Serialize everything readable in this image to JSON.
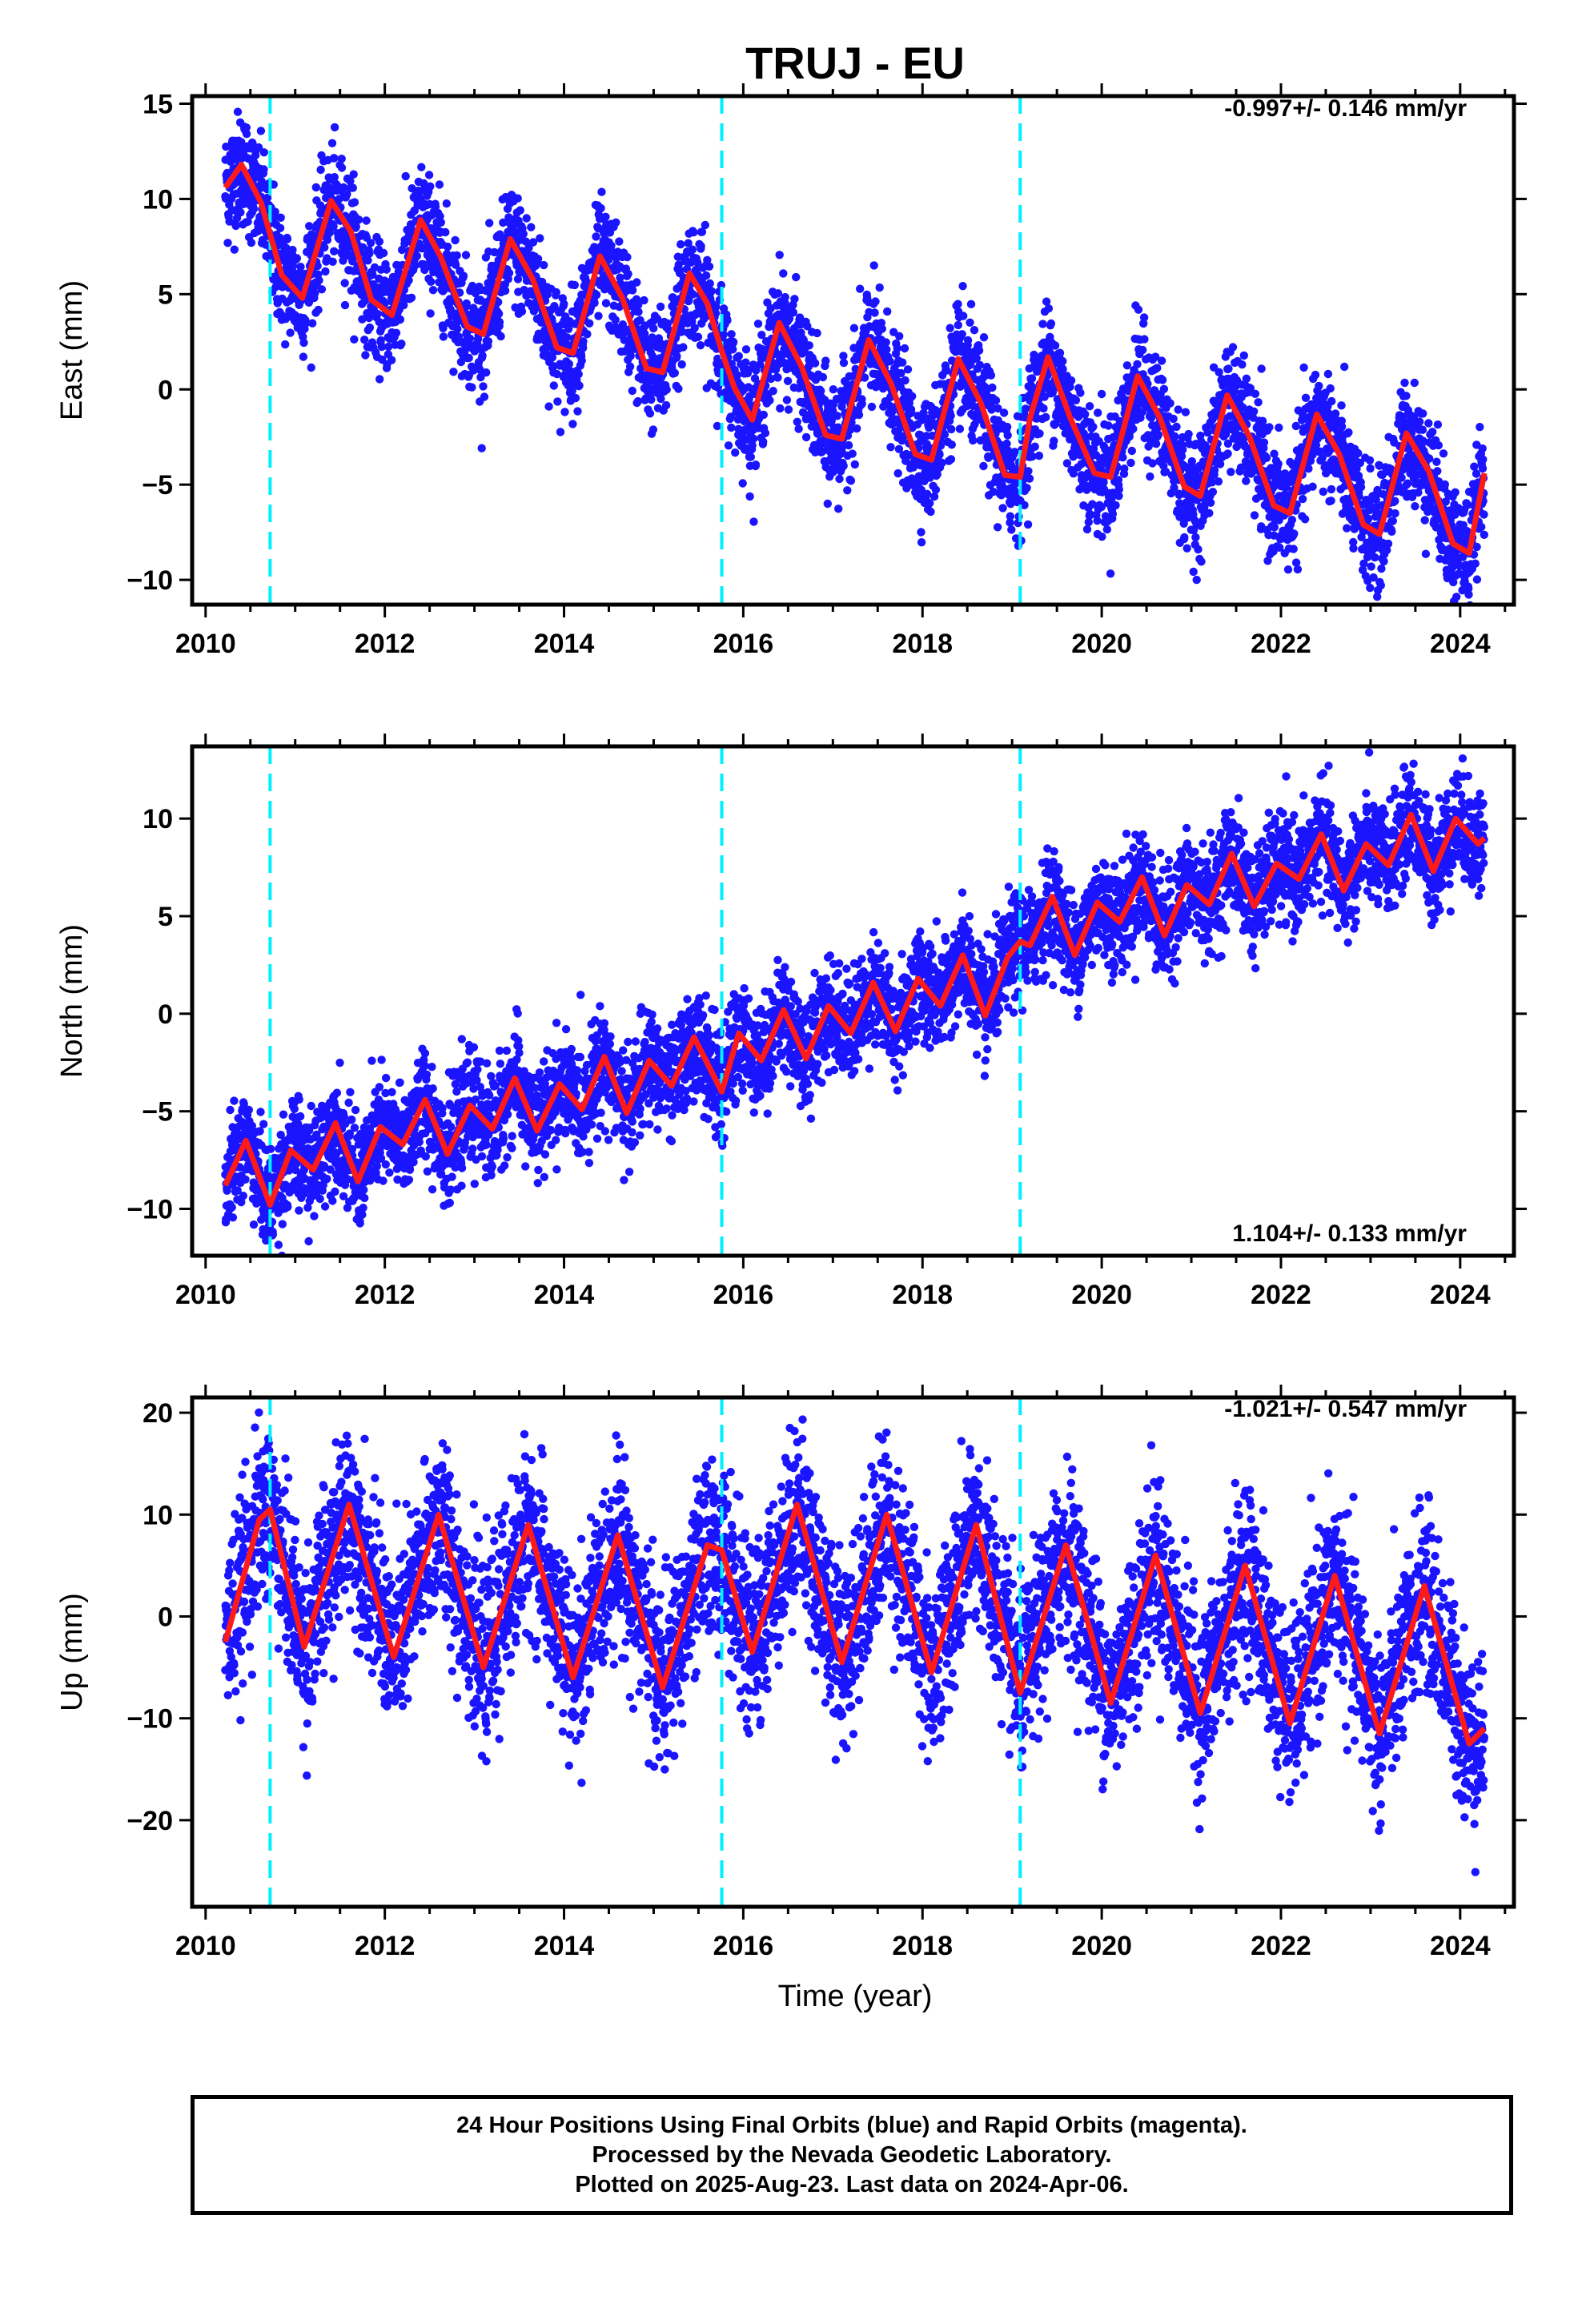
{
  "figure": {
    "title": "TRUJ - EU",
    "xlabel": "Time (year)",
    "footer": [
      "24 Hour Positions Using Final Orbits (blue) and Rapid Orbits (magenta).",
      "Processed by the Nevada Geodetic Laboratory.",
      "Plotted on 2025-Aug-23. Last data on 2024-Apr-06."
    ],
    "colors": {
      "points": "#1a14ff",
      "model": "#ff1a1a",
      "steps": "#00f0ff",
      "frame": "#000000"
    }
  },
  "chart_data": [
    {
      "type": "scatter",
      "ylabel": "East (mm)",
      "rate_text": "-0.997+/- 0.146 mm/yr",
      "xlim": [
        2009.85,
        2024.6
      ],
      "ylim": [
        -11.3,
        15.4
      ],
      "xticks": [
        "2010",
        "2012",
        "2014",
        "2016",
        "2018",
        "2020",
        "2022",
        "2024"
      ],
      "yticks": [
        "15",
        "10",
        "5",
        "0",
        "−5",
        "−10"
      ],
      "steps": [
        2010.72,
        2015.76,
        2019.09
      ],
      "series": [
        {
          "role": "model",
          "x": [
            2010.22,
            2010.4,
            2010.62,
            2010.85,
            2011.08,
            2011.4,
            2011.62,
            2011.85,
            2012.08,
            2012.4,
            2012.62,
            2012.92,
            2013.1,
            2013.4,
            2013.65,
            2013.92,
            2014.1,
            2014.4,
            2014.65,
            2014.92,
            2015.1,
            2015.4,
            2015.6,
            2015.76,
            2015.9,
            2016.1,
            2016.4,
            2016.65,
            2016.92,
            2017.1,
            2017.4,
            2017.65,
            2017.92,
            2018.1,
            2018.4,
            2018.65,
            2018.92,
            2019.09,
            2019.2,
            2019.4,
            2019.65,
            2019.92,
            2020.1,
            2020.4,
            2020.65,
            2020.92,
            2021.1,
            2021.4,
            2021.65,
            2021.92,
            2022.1,
            2022.4,
            2022.65,
            2022.92,
            2023.1,
            2023.4,
            2023.65,
            2023.92,
            2024.1,
            2024.27
          ],
          "y": [
            10.6,
            11.8,
            9.8,
            6.0,
            4.8,
            9.9,
            8.3,
            4.7,
            3.9,
            8.9,
            7.0,
            3.3,
            2.9,
            7.9,
            5.8,
            2.2,
            1.9,
            7.0,
            4.8,
            1.1,
            0.9,
            6.1,
            4.5,
            2.0,
            0.1,
            -1.6,
            3.5,
            1.2,
            -2.4,
            -2.6,
            2.6,
            0.3,
            -3.4,
            -3.7,
            1.6,
            -0.7,
            -4.5,
            -4.6,
            -1.5,
            1.7,
            -1.5,
            -4.4,
            -4.6,
            0.7,
            -1.5,
            -5.1,
            -5.6,
            -0.3,
            -2.5,
            -6.1,
            -6.5,
            -1.3,
            -3.4,
            -7.1,
            -7.6,
            -2.3,
            -4.3,
            -8.1,
            -8.6,
            -4.4
          ]
        }
      ]
    },
    {
      "type": "scatter",
      "ylabel": "North (mm)",
      "rate_text": "1.104+/- 0.133 mm/yr",
      "xlim": [
        2009.85,
        2024.6
      ],
      "ylim": [
        -12.4,
        13.7
      ],
      "xticks": [
        "2010",
        "2012",
        "2014",
        "2016",
        "2018",
        "2020",
        "2022",
        "2024"
      ],
      "yticks": [
        "10",
        "5",
        "0",
        "−5",
        "−10"
      ],
      "steps": [
        2010.72,
        2015.76,
        2019.09
      ],
      "series": [
        {
          "role": "model",
          "x": [
            2010.22,
            2010.45,
            2010.72,
            2010.95,
            2011.2,
            2011.45,
            2011.7,
            2011.95,
            2012.2,
            2012.45,
            2012.7,
            2012.95,
            2013.2,
            2013.45,
            2013.7,
            2013.95,
            2014.2,
            2014.45,
            2014.7,
            2014.95,
            2015.2,
            2015.45,
            2015.76,
            2015.95,
            2016.2,
            2016.45,
            2016.7,
            2016.95,
            2017.2,
            2017.45,
            2017.7,
            2017.95,
            2018.2,
            2018.45,
            2018.7,
            2018.95,
            2019.09,
            2019.2,
            2019.45,
            2019.7,
            2019.95,
            2020.2,
            2020.45,
            2020.7,
            2020.95,
            2021.2,
            2021.45,
            2021.7,
            2021.95,
            2022.2,
            2022.45,
            2022.7,
            2022.95,
            2023.2,
            2023.45,
            2023.7,
            2023.95,
            2024.2,
            2024.27
          ],
          "y": [
            -8.8,
            -6.5,
            -9.8,
            -7.0,
            -8.0,
            -5.6,
            -8.6,
            -5.8,
            -6.7,
            -4.4,
            -7.2,
            -4.7,
            -5.9,
            -3.3,
            -6.0,
            -3.6,
            -4.9,
            -2.2,
            -5.1,
            -2.4,
            -3.7,
            -1.2,
            -4.0,
            -1.0,
            -2.4,
            0.2,
            -2.3,
            0.4,
            -1.0,
            1.6,
            -0.9,
            1.8,
            0.4,
            3.0,
            -0.1,
            2.9,
            3.7,
            3.5,
            6.0,
            3.0,
            5.7,
            4.7,
            7.0,
            4.0,
            6.6,
            5.6,
            8.2,
            5.5,
            7.7,
            6.9,
            9.2,
            6.3,
            8.7,
            7.6,
            10.2,
            7.3,
            10.0,
            8.7,
            9.0
          ]
        }
      ]
    },
    {
      "type": "scatter",
      "ylabel": "Up (mm)",
      "rate_text": "-1.021+/- 0.547 mm/yr",
      "xlim": [
        2009.85,
        2024.6
      ],
      "ylim": [
        -28.5,
        21.5
      ],
      "xticks": [
        "2010",
        "2012",
        "2014",
        "2016",
        "2018",
        "2020",
        "2022",
        "2024"
      ],
      "yticks": [
        "20",
        "10",
        "0",
        "−10",
        "−20"
      ],
      "steps": [
        2010.72,
        2015.76,
        2019.09
      ],
      "series": [
        {
          "role": "model",
          "x": [
            2010.22,
            2010.6,
            2010.72,
            2011.1,
            2011.6,
            2012.1,
            2012.6,
            2013.1,
            2013.6,
            2014.1,
            2014.6,
            2015.1,
            2015.6,
            2015.76,
            2016.1,
            2016.6,
            2017.1,
            2017.6,
            2018.1,
            2018.6,
            2019.09,
            2019.6,
            2020.1,
            2020.6,
            2021.1,
            2021.6,
            2022.1,
            2022.6,
            2023.1,
            2023.6,
            2024.1,
            2024.27
          ],
          "y": [
            -2.5,
            9.5,
            10.5,
            -3.0,
            11.0,
            -4.0,
            10.0,
            -5.0,
            9.0,
            -6.0,
            8.0,
            -7.0,
            7.0,
            6.5,
            -3.5,
            11.0,
            -4.5,
            10.0,
            -5.5,
            9.0,
            -7.5,
            7.0,
            -8.5,
            6.0,
            -9.5,
            5.0,
            -10.5,
            4.0,
            -11.5,
            3.0,
            -12.5,
            -11.0
          ]
        }
      ]
    }
  ]
}
